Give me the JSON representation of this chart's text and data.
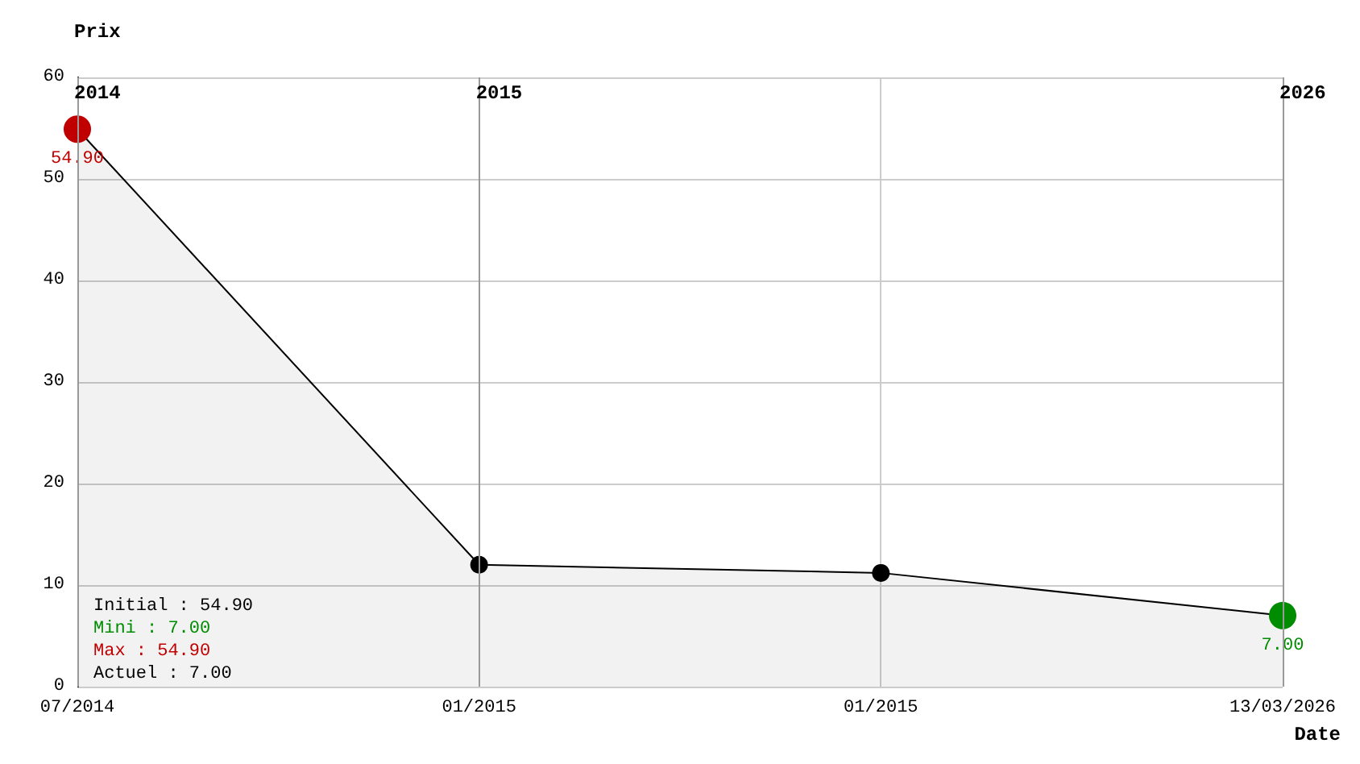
{
  "chart_data": {
    "type": "area",
    "xlabel": "Date",
    "ylabel": "Prix",
    "categories": [
      "07/2014",
      "01/2015",
      "01/2015",
      "13/03/2026"
    ],
    "series": [
      {
        "color": "#000000",
        "values": [
          54.9,
          12,
          11.2,
          7
        ],
        "colors": [
          "#c00000",
          "#000000",
          "#000000",
          "#008c00"
        ],
        "value_labels": [
          "54.90",
          null,
          null,
          "7.00"
        ]
      }
    ],
    "ylim": [
      0,
      60
    ],
    "yticks": [
      0,
      10,
      20,
      30,
      40,
      50,
      60
    ],
    "grid": true,
    "marker": "circle",
    "line_style": "solid",
    "ref_lines": [
      {
        "axis": "x",
        "value": "07/2014",
        "label": "2014"
      },
      {
        "axis": "x",
        "value": "01/2015",
        "label": "2015"
      },
      {
        "axis": "x",
        "value": "13/03/2026",
        "label": "2026"
      }
    ],
    "annotations": [
      "Initial : 54.90",
      "Mini : 7.00",
      "Max : 54.90",
      "Actuel : 7.00"
    ]
  }
}
